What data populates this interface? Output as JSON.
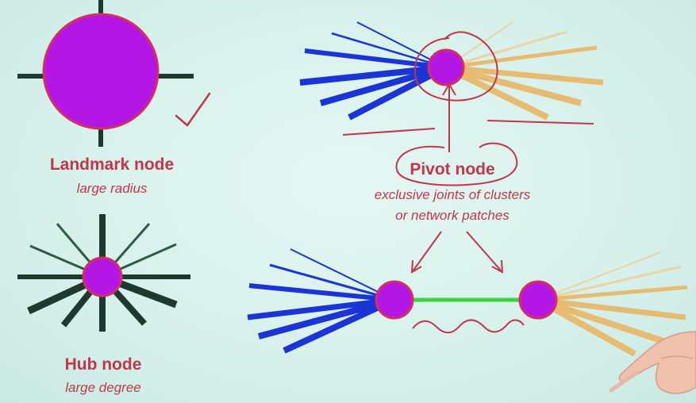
{
  "landmark": {
    "title": "Landmark node",
    "subtitle": "large radius"
  },
  "hub": {
    "title": "Hub node",
    "subtitle": "large degree"
  },
  "pivot": {
    "title": "Pivot node",
    "subtitle_line1": "exclusive joints of clusters",
    "subtitle_line2": "or network patches"
  },
  "colors": {
    "node_fill": "#b416e6",
    "node_stroke": "#d2305f",
    "spoke_dark": "#1d3a2e",
    "cluster_blue": "#1a34d6",
    "cluster_orange": "#e6bc72",
    "bridge_green": "#3fd23f",
    "annotation_red": "#c0374a",
    "label_red": "#c0374a"
  }
}
